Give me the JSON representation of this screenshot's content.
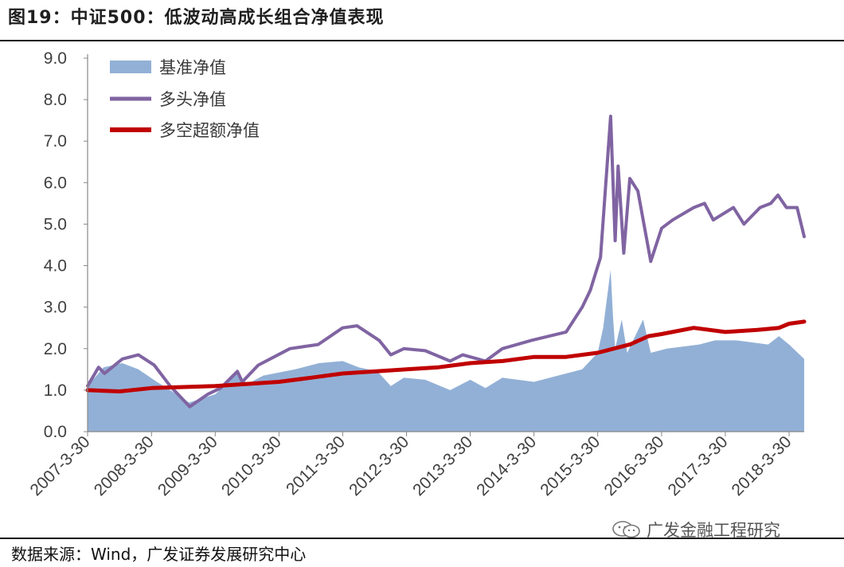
{
  "figure": {
    "title": "图19：中证500：低波动高成长组合净值表现",
    "source": "数据来源：Wind，广发证券发展研究中心",
    "watermark": "广发金融工程研究"
  },
  "chart_data": {
    "type": "line",
    "title": "",
    "xlabel": "",
    "ylabel": "",
    "ylim": [
      0,
      9
    ],
    "yticks": [
      "0.0",
      "1.0",
      "2.0",
      "3.0",
      "4.0",
      "5.0",
      "6.0",
      "7.0",
      "8.0",
      "9.0"
    ],
    "xticks": [
      "2007-3-30",
      "2008-3-30",
      "2009-3-30",
      "2010-3-30",
      "2011-3-30",
      "2012-3-30",
      "2013-3-30",
      "2014-3-30",
      "2015-3-30",
      "2016-3-30",
      "2017-3-30",
      "2018-3-30"
    ],
    "xlim": [
      "2007-03-30",
      "2018-06-29"
    ],
    "grid": false,
    "legend_position": "top-left",
    "colors": {
      "benchmark": "#92b0d6",
      "long": "#8064a2",
      "long_short": "#c00000"
    },
    "series": [
      {
        "name": "基准净值",
        "style": "area",
        "x": [
          "2007-03-30",
          "2007-06-30",
          "2007-10-15",
          "2008-01-15",
          "2008-04-30",
          "2008-07-15",
          "2008-10-31",
          "2009-03-30",
          "2009-08-03",
          "2009-09-30",
          "2009-12-31",
          "2010-07-01",
          "2010-11-15",
          "2011-03-30",
          "2011-06-30",
          "2011-10-15",
          "2011-12-31",
          "2012-03-15",
          "2012-07-15",
          "2012-12-05",
          "2013-03-30",
          "2013-06-25",
          "2013-09-30",
          "2014-03-30",
          "2014-09-30",
          "2014-12-31",
          "2015-03-30",
          "2015-04-30",
          "2015-06-12",
          "2015-06-25",
          "2015-07-08",
          "2015-08-15",
          "2015-09-15",
          "2015-12-15",
          "2016-01-28",
          "2016-04-30",
          "2016-10-31",
          "2017-01-31",
          "2017-06-01",
          "2017-11-30",
          "2018-01-31",
          "2018-03-30",
          "2018-06-29"
        ],
        "values": [
          1.1,
          1.55,
          1.65,
          1.5,
          1.2,
          1.0,
          0.7,
          0.9,
          1.4,
          1.15,
          1.35,
          1.5,
          1.65,
          1.7,
          1.55,
          1.45,
          1.1,
          1.3,
          1.25,
          1.0,
          1.25,
          1.05,
          1.3,
          1.2,
          1.4,
          1.5,
          1.9,
          2.5,
          3.9,
          2.8,
          2.0,
          2.7,
          1.9,
          2.7,
          1.9,
          2.0,
          2.1,
          2.2,
          2.2,
          2.1,
          2.3,
          2.1,
          1.75
        ]
      },
      {
        "name": "多头净值",
        "style": "line",
        "x": [
          "2007-03-30",
          "2007-06-01",
          "2007-07-05",
          "2007-10-15",
          "2008-01-15",
          "2008-04-15",
          "2008-07-15",
          "2008-11-04",
          "2009-02-15",
          "2009-04-30",
          "2009-08-04",
          "2009-09-01",
          "2009-12-01",
          "2010-06-01",
          "2010-11-10",
          "2011-03-30",
          "2011-06-20",
          "2011-10-25",
          "2011-12-31",
          "2012-03-15",
          "2012-07-15",
          "2012-12-04",
          "2013-02-15",
          "2013-06-25",
          "2013-09-30",
          "2014-03-15",
          "2014-09-30",
          "2014-12-31",
          "2015-02-15",
          "2015-04-15",
          "2015-06-12",
          "2015-07-08",
          "2015-07-25",
          "2015-08-26",
          "2015-09-30",
          "2015-11-15",
          "2016-01-28",
          "2016-03-30",
          "2016-06-01",
          "2016-09-30",
          "2016-12-01",
          "2017-01-20",
          "2017-05-15",
          "2017-07-15",
          "2017-10-15",
          "2017-12-15",
          "2018-01-25",
          "2018-03-15",
          "2018-05-15",
          "2018-06-29"
        ],
        "values": [
          1.1,
          1.55,
          1.4,
          1.75,
          1.85,
          1.6,
          1.1,
          0.6,
          0.9,
          1.05,
          1.45,
          1.2,
          1.6,
          2.0,
          2.1,
          2.5,
          2.55,
          2.2,
          1.85,
          2.0,
          1.95,
          1.7,
          1.85,
          1.7,
          2.0,
          2.2,
          2.4,
          3.0,
          3.4,
          4.2,
          7.6,
          4.6,
          6.4,
          4.3,
          6.1,
          5.8,
          4.1,
          4.9,
          5.1,
          5.4,
          5.5,
          5.1,
          5.4,
          5.0,
          5.4,
          5.5,
          5.7,
          5.4,
          5.4,
          4.7
        ]
      },
      {
        "name": "多空超额净值",
        "style": "line",
        "x": [
          "2007-03-30",
          "2007-09-30",
          "2008-03-30",
          "2009-03-30",
          "2009-09-30",
          "2010-03-30",
          "2010-09-30",
          "2011-03-30",
          "2011-09-30",
          "2012-03-30",
          "2012-09-30",
          "2013-03-30",
          "2013-09-30",
          "2014-03-30",
          "2014-09-30",
          "2015-03-30",
          "2015-09-30",
          "2016-01-15",
          "2016-03-30",
          "2016-09-30",
          "2017-03-30",
          "2017-09-30",
          "2018-01-31",
          "2018-03-30",
          "2018-06-29"
        ],
        "values": [
          1.0,
          0.97,
          1.05,
          1.1,
          1.15,
          1.2,
          1.3,
          1.4,
          1.45,
          1.5,
          1.55,
          1.65,
          1.7,
          1.8,
          1.8,
          1.9,
          2.1,
          2.3,
          2.35,
          2.5,
          2.4,
          2.45,
          2.5,
          2.6,
          2.65
        ]
      }
    ]
  }
}
